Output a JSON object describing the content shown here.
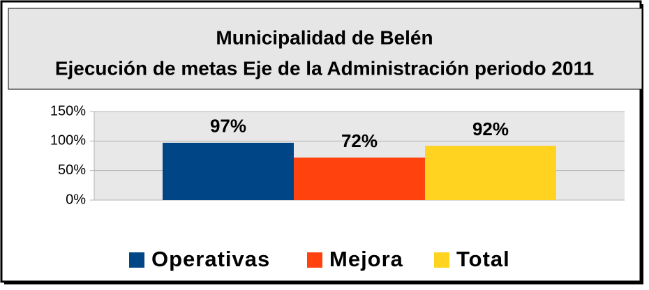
{
  "chart_data": {
    "type": "bar",
    "title": "Municipalidad de Belén",
    "subtitle": "Ejecución de metas Eje de la Administración periodo 2011",
    "categories": [
      null
    ],
    "series": [
      {
        "name": "Operativas",
        "color": "#004586",
        "values": [
          97
        ],
        "value_labels": [
          "97%"
        ]
      },
      {
        "name": "Mejora",
        "color": "#ff420e",
        "values": [
          72
        ],
        "value_labels": [
          "72%"
        ]
      },
      {
        "name": "Total",
        "color": "#ffd320",
        "values": [
          92
        ],
        "value_labels": [
          "92%"
        ]
      }
    ],
    "ylim": [
      0,
      150
    ],
    "yticks": [
      {
        "value": 0,
        "label": "0%"
      },
      {
        "value": 50,
        "label": "50%"
      },
      {
        "value": 100,
        "label": "100%"
      },
      {
        "value": 150,
        "label": "150%"
      }
    ],
    "grid": true,
    "legend": "bottom"
  }
}
